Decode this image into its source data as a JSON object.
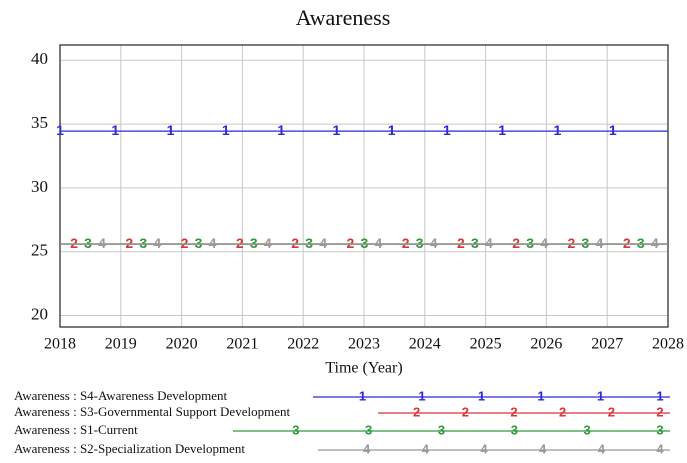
{
  "chart_data": {
    "type": "line",
    "title": "Awareness",
    "x_label": "Time (Year)",
    "x": [
      2018,
      2019,
      2020,
      2021,
      2022,
      2023,
      2024,
      2025,
      2026,
      2027,
      2028
    ],
    "xlim": [
      2018,
      2028
    ],
    "xticks": [
      2018,
      2019,
      2020,
      2021,
      2022,
      2023,
      2024,
      2025,
      2026,
      2027,
      2028
    ],
    "ylim": [
      19.1,
      41.2
    ],
    "yticks": [
      20,
      25,
      30,
      35,
      40
    ],
    "grid": true,
    "series": [
      {
        "name": "Awareness : S4-Awareness Development",
        "marker": "1",
        "color": "#2a2ad0",
        "values": [
          34.45,
          34.45,
          34.45,
          34.45,
          34.45,
          34.45,
          34.45,
          34.45,
          34.45,
          34.45,
          34.45
        ]
      },
      {
        "name": "Awareness : S3-Governmental Support Development",
        "marker": "2",
        "color": "#d8343a",
        "values": [
          25.6,
          25.6,
          25.6,
          25.6,
          25.6,
          25.6,
          25.6,
          25.6,
          25.6,
          25.6,
          25.6
        ]
      },
      {
        "name": "Awareness : S1-Current",
        "marker": "3",
        "color": "#2c9a3a",
        "values": [
          25.6,
          25.6,
          25.6,
          25.6,
          25.6,
          25.6,
          25.6,
          25.6,
          25.6,
          25.6,
          25.6
        ]
      },
      {
        "name": "Awareness : S2-Specialization Development",
        "marker": "4",
        "color": "#999999",
        "values": [
          25.6,
          25.6,
          25.6,
          25.6,
          25.6,
          25.6,
          25.6,
          25.6,
          25.6,
          25.6,
          25.6
        ]
      }
    ]
  }
}
